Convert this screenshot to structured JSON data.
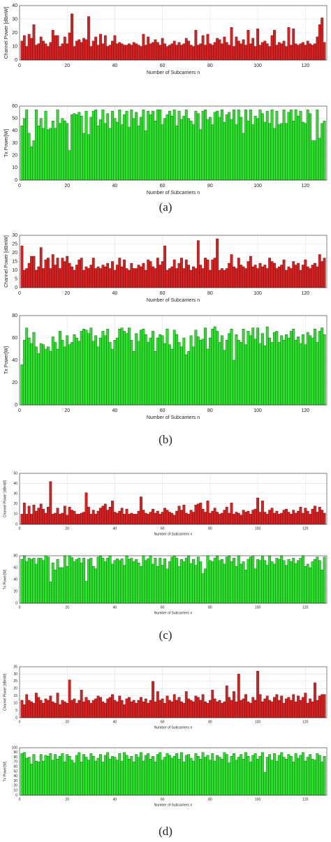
{
  "chart_data": [
    {
      "type": "bar",
      "ylabel": "Channel Power [dBmW]",
      "xlabel": "Number of Subcarriers n",
      "color": "#d42222",
      "edge": "#5a0a0a",
      "grid": true,
      "xlim": [
        0,
        129
      ],
      "xticks": [
        0,
        20,
        40,
        60,
        80,
        100,
        120
      ],
      "ylim": [
        0,
        40
      ],
      "yticks": [
        0,
        10,
        20,
        30,
        40
      ],
      "values": [
        14,
        18,
        10,
        19,
        16,
        26,
        11,
        12,
        17,
        14,
        12,
        10,
        13,
        22,
        18,
        18,
        10,
        12,
        17,
        12,
        20,
        34,
        10,
        14,
        15,
        13,
        16,
        15,
        32,
        10,
        14,
        17,
        11,
        19,
        12,
        18,
        10,
        11,
        14,
        18,
        12,
        13,
        12,
        11,
        11,
        12,
        11,
        13,
        12,
        11,
        10,
        19,
        11,
        17,
        12,
        13,
        15,
        13,
        11,
        16,
        12,
        10,
        11,
        12,
        14,
        11,
        13,
        11,
        12,
        16,
        14,
        11,
        10,
        22,
        11,
        12,
        18,
        11,
        19,
        12,
        11,
        13,
        16,
        15,
        12,
        17,
        13,
        11,
        24,
        10,
        17,
        14,
        12,
        15,
        11,
        22,
        12,
        16,
        10,
        23,
        11,
        13,
        14,
        12,
        10,
        18,
        22,
        11,
        13,
        12,
        14,
        10,
        24,
        11,
        23,
        12,
        11,
        12,
        13,
        11,
        14,
        12,
        11,
        12,
        17,
        26,
        31,
        13
      ]
    },
    {
      "type": "bar",
      "ylabel": "Tx Power[W]",
      "xlabel": "Number of Subcarriers n",
      "color": "#2ee02e",
      "edge": "#0b4a0b",
      "grid": true,
      "xlim": [
        0,
        129
      ],
      "xticks": [
        0,
        20,
        40,
        60,
        80,
        100,
        120
      ],
      "ylim": [
        0,
        60
      ],
      "yticks": [
        0,
        10,
        20,
        30,
        40,
        50,
        60
      ],
      "values": [
        44,
        50,
        57,
        38,
        27,
        32,
        57,
        44,
        50,
        42,
        56,
        41,
        42,
        48,
        42,
        57,
        46,
        50,
        48,
        46,
        24,
        53,
        54,
        53,
        55,
        52,
        38,
        56,
        37,
        51,
        56,
        57,
        44,
        49,
        57,
        46,
        54,
        42,
        56,
        50,
        47,
        57,
        45,
        53,
        56,
        43,
        57,
        50,
        55,
        44,
        51,
        57,
        40,
        56,
        53,
        56,
        48,
        57,
        57,
        45,
        50,
        53,
        56,
        52,
        57,
        44,
        56,
        49,
        52,
        57,
        50,
        48,
        45,
        56,
        54,
        41,
        56,
        57,
        49,
        51,
        45,
        55,
        56,
        51,
        57,
        47,
        53,
        55,
        49,
        57,
        45,
        57,
        51,
        38,
        57,
        48,
        57,
        45,
        52,
        50,
        57,
        54,
        47,
        56,
        46,
        57,
        42,
        56,
        45,
        46,
        57,
        46,
        55,
        57,
        48,
        57,
        52,
        56,
        47,
        46,
        57,
        54,
        32,
        32,
        57,
        34,
        46,
        48
      ]
    },
    {
      "type": "bar",
      "ylabel": "Channel Power [dBmW]",
      "xlabel": "Number of Subcarriers n",
      "color": "#d42222",
      "edge": "#5a0a0a",
      "grid": true,
      "xlim": [
        0,
        129
      ],
      "xticks": [
        0,
        20,
        40,
        60,
        80,
        100,
        120
      ],
      "ylim": [
        0,
        30
      ],
      "yticks": [
        0,
        5,
        10,
        15,
        20,
        25,
        30
      ],
      "values": [
        24,
        10,
        11,
        14,
        18,
        18,
        10,
        12,
        23,
        11,
        16,
        17,
        11,
        19,
        13,
        17,
        11,
        17,
        15,
        18,
        14,
        12,
        10,
        13,
        16,
        17,
        10,
        12,
        11,
        13,
        17,
        11,
        12,
        11,
        13,
        12,
        14,
        11,
        15,
        10,
        13,
        17,
        12,
        16,
        11,
        10,
        14,
        11,
        11,
        13,
        12,
        14,
        10,
        16,
        15,
        12,
        11,
        17,
        13,
        15,
        24,
        10,
        11,
        12,
        16,
        11,
        14,
        17,
        11,
        16,
        13,
        10,
        12,
        11,
        27,
        13,
        11,
        17,
        16,
        10,
        16,
        17,
        28,
        10,
        11,
        10,
        11,
        14,
        19,
        12,
        11,
        17,
        13,
        12,
        11,
        15,
        18,
        12,
        13,
        11,
        14,
        12,
        13,
        11,
        17,
        15,
        14,
        11,
        12,
        13,
        16,
        10,
        12,
        11,
        15,
        13,
        14,
        10,
        13,
        16,
        12,
        11,
        13,
        14,
        12,
        19,
        15,
        17
      ]
    },
    {
      "type": "bar",
      "ylabel": "Tx Power[W]",
      "xlabel": "Number of Subcarriers n",
      "color": "#2ee02e",
      "edge": "#0b4a0b",
      "grid": true,
      "xlim": [
        0,
        129
      ],
      "xticks": [
        0,
        20,
        40,
        60,
        80,
        100,
        120
      ],
      "ylim": [
        0,
        80
      ],
      "yticks": [
        0,
        20,
        40,
        60,
        80
      ],
      "values": [
        36,
        58,
        69,
        60,
        55,
        65,
        52,
        46,
        55,
        54,
        50,
        52,
        48,
        61,
        56,
        50,
        66,
        58,
        52,
        62,
        54,
        56,
        63,
        60,
        57,
        66,
        68,
        67,
        64,
        69,
        57,
        62,
        52,
        60,
        66,
        62,
        68,
        56,
        50,
        58,
        60,
        68,
        69,
        66,
        64,
        69,
        58,
        48,
        64,
        57,
        67,
        68,
        63,
        56,
        60,
        66,
        48,
        60,
        63,
        62,
        55,
        68,
        54,
        50,
        67,
        63,
        56,
        52,
        60,
        45,
        48,
        62,
        52,
        67,
        61,
        58,
        59,
        69,
        50,
        60,
        68,
        70,
        66,
        56,
        62,
        49,
        58,
        64,
        68,
        40,
        63,
        58,
        56,
        68,
        54,
        66,
        62,
        69,
        59,
        69,
        55,
        64,
        53,
        70,
        60,
        56,
        65,
        66,
        56,
        62,
        58,
        63,
        60,
        66,
        68,
        58,
        61,
        55,
        63,
        54,
        65,
        62,
        60,
        68,
        56,
        66,
        69,
        63
      ]
    },
    {
      "type": "bar",
      "ylabel": "Channel Power [dBmW]",
      "xlabel": "Number of Subcarriers n",
      "color": "#d42222",
      "edge": "#5a0a0a",
      "grid": true,
      "xlim": [
        0,
        129
      ],
      "xticks": [
        0,
        20,
        40,
        60,
        80,
        100,
        120
      ],
      "ylim": [
        0,
        50
      ],
      "yticks": [
        0,
        10,
        20,
        30,
        40,
        50
      ],
      "values": [
        10,
        21,
        10,
        18,
        10,
        19,
        13,
        16,
        20,
        15,
        11,
        17,
        42,
        10,
        11,
        16,
        10,
        11,
        18,
        9,
        17,
        14,
        13,
        10,
        10,
        11,
        12,
        31,
        17,
        10,
        14,
        10,
        13,
        16,
        18,
        20,
        14,
        17,
        23,
        12,
        11,
        13,
        16,
        10,
        15,
        10,
        11,
        10,
        10,
        13,
        27,
        14,
        11,
        10,
        12,
        15,
        11,
        13,
        10,
        12,
        16,
        14,
        12,
        11,
        9,
        13,
        18,
        14,
        19,
        11,
        10,
        14,
        12,
        19,
        20,
        21,
        15,
        12,
        23,
        11,
        13,
        16,
        12,
        10,
        11,
        14,
        17,
        11,
        21,
        10,
        12,
        11,
        9,
        14,
        12,
        13,
        10,
        14,
        15,
        26,
        12,
        23,
        12,
        10,
        14,
        16,
        11,
        13,
        10,
        11,
        14,
        15,
        12,
        10,
        14,
        11,
        13,
        17,
        11,
        16,
        13,
        10,
        15,
        18,
        12,
        17,
        14,
        11
      ]
    },
    {
      "type": "bar",
      "ylabel": "Tx Power[W]",
      "xlabel": "Number of Subcarriers n",
      "color": "#2ee02e",
      "edge": "#0b4a0b",
      "grid": true,
      "xlim": [
        0,
        129
      ],
      "xticks": [
        0,
        20,
        40,
        60,
        80,
        100,
        120
      ],
      "ylim": [
        0,
        80
      ],
      "yticks": [
        0,
        20,
        40,
        60,
        80
      ],
      "values": [
        74,
        80,
        70,
        76,
        74,
        76,
        66,
        76,
        76,
        72,
        80,
        78,
        36,
        68,
        56,
        74,
        60,
        60,
        80,
        62,
        80,
        77,
        70,
        74,
        76,
        68,
        76,
        37,
        74,
        76,
        62,
        58,
        78,
        80,
        76,
        70,
        76,
        80,
        66,
        72,
        75,
        72,
        75,
        64,
        80,
        74,
        76,
        70,
        74,
        68,
        62,
        80,
        72,
        75,
        80,
        66,
        76,
        62,
        76,
        64,
        75,
        58,
        70,
        78,
        80,
        76,
        62,
        74,
        70,
        76,
        80,
        67,
        74,
        64,
        78,
        70,
        50,
        58,
        80,
        72,
        70,
        76,
        80,
        72,
        74,
        66,
        78,
        80,
        70,
        76,
        62,
        80,
        66,
        70,
        56,
        74,
        78,
        80,
        58,
        74,
        72,
        79,
        72,
        64,
        80,
        70,
        66,
        76,
        74,
        80,
        72,
        64,
        74,
        70,
        76,
        67,
        72,
        76,
        80,
        62,
        66,
        60,
        70,
        74,
        78,
        72,
        56,
        78
      ]
    },
    {
      "type": "bar",
      "ylabel": "Channel Power [dBmW]",
      "xlabel": "Number of Subcarriers n",
      "color": "#d42222",
      "edge": "#5a0a0a",
      "grid": true,
      "xlim": [
        0,
        129
      ],
      "xticks": [
        0,
        20,
        40,
        60,
        80,
        100,
        120
      ],
      "ylim": [
        0,
        35
      ],
      "yticks": [
        0,
        5,
        10,
        15,
        20,
        25,
        30,
        35
      ],
      "values": [
        12,
        9,
        16,
        12,
        11,
        10,
        17,
        14,
        12,
        10,
        13,
        12,
        15,
        11,
        10,
        17,
        9,
        12,
        11,
        10,
        26,
        12,
        13,
        10,
        12,
        19,
        11,
        14,
        12,
        10,
        12,
        13,
        15,
        14,
        11,
        10,
        13,
        14,
        16,
        12,
        11,
        15,
        12,
        9,
        13,
        14,
        11,
        12,
        10,
        12,
        14,
        11,
        13,
        10,
        12,
        25,
        11,
        18,
        12,
        13,
        10,
        15,
        12,
        11,
        16,
        12,
        14,
        11,
        10,
        18,
        13,
        12,
        11,
        15,
        14,
        12,
        16,
        11,
        10,
        12,
        19,
        13,
        11,
        12,
        10,
        11,
        22,
        14,
        12,
        18,
        11,
        30,
        12,
        13,
        16,
        11,
        10,
        14,
        12,
        32,
        16,
        11,
        13,
        15,
        12,
        11,
        14,
        16,
        12,
        15,
        10,
        13,
        14,
        12,
        16,
        11,
        15,
        12,
        14,
        17,
        10,
        13,
        11,
        24,
        12,
        15,
        16,
        16
      ]
    },
    {
      "type": "bar",
      "ylabel": "Tx Power[W]",
      "xlabel": "Number of Subcarriers n",
      "color": "#2ee02e",
      "edge": "#0b4a0b",
      "grid": true,
      "xlim": [
        0,
        129
      ],
      "xticks": [
        0,
        20,
        40,
        60,
        80,
        100,
        120
      ],
      "ylim": [
        0,
        100
      ],
      "yticks": [
        0,
        10,
        20,
        30,
        40,
        50,
        60,
        70,
        80,
        90,
        100
      ],
      "values": [
        88,
        90,
        78,
        80,
        66,
        86,
        72,
        70,
        86,
        72,
        84,
        82,
        88,
        74,
        86,
        76,
        82,
        88,
        70,
        86,
        82,
        74,
        68,
        84,
        90,
        70,
        86,
        80,
        74,
        88,
        82,
        72,
        78,
        86,
        70,
        84,
        90,
        76,
        82,
        80,
        74,
        88,
        72,
        90,
        84,
        76,
        82,
        70,
        86,
        80,
        90,
        72,
        84,
        88,
        76,
        82,
        70,
        86,
        90,
        74,
        80,
        88,
        84,
        78,
        82,
        88,
        76,
        90,
        70,
        84,
        86,
        78,
        72,
        88,
        82,
        76,
        90,
        80,
        84,
        74,
        88,
        72,
        84,
        80,
        76,
        90,
        86,
        68,
        82,
        88,
        74,
        80,
        86,
        76,
        90,
        82,
        70,
        84,
        88,
        76,
        82,
        90,
        48,
        80,
        86,
        74,
        88,
        72,
        84,
        90,
        80,
        76,
        86,
        82,
        70,
        88,
        78,
        84,
        90,
        72,
        80,
        86,
        76,
        74,
        88,
        84,
        70,
        82
      ]
    }
  ],
  "captions": [
    "(a)",
    "(b)",
    "(c)",
    "(d)"
  ]
}
